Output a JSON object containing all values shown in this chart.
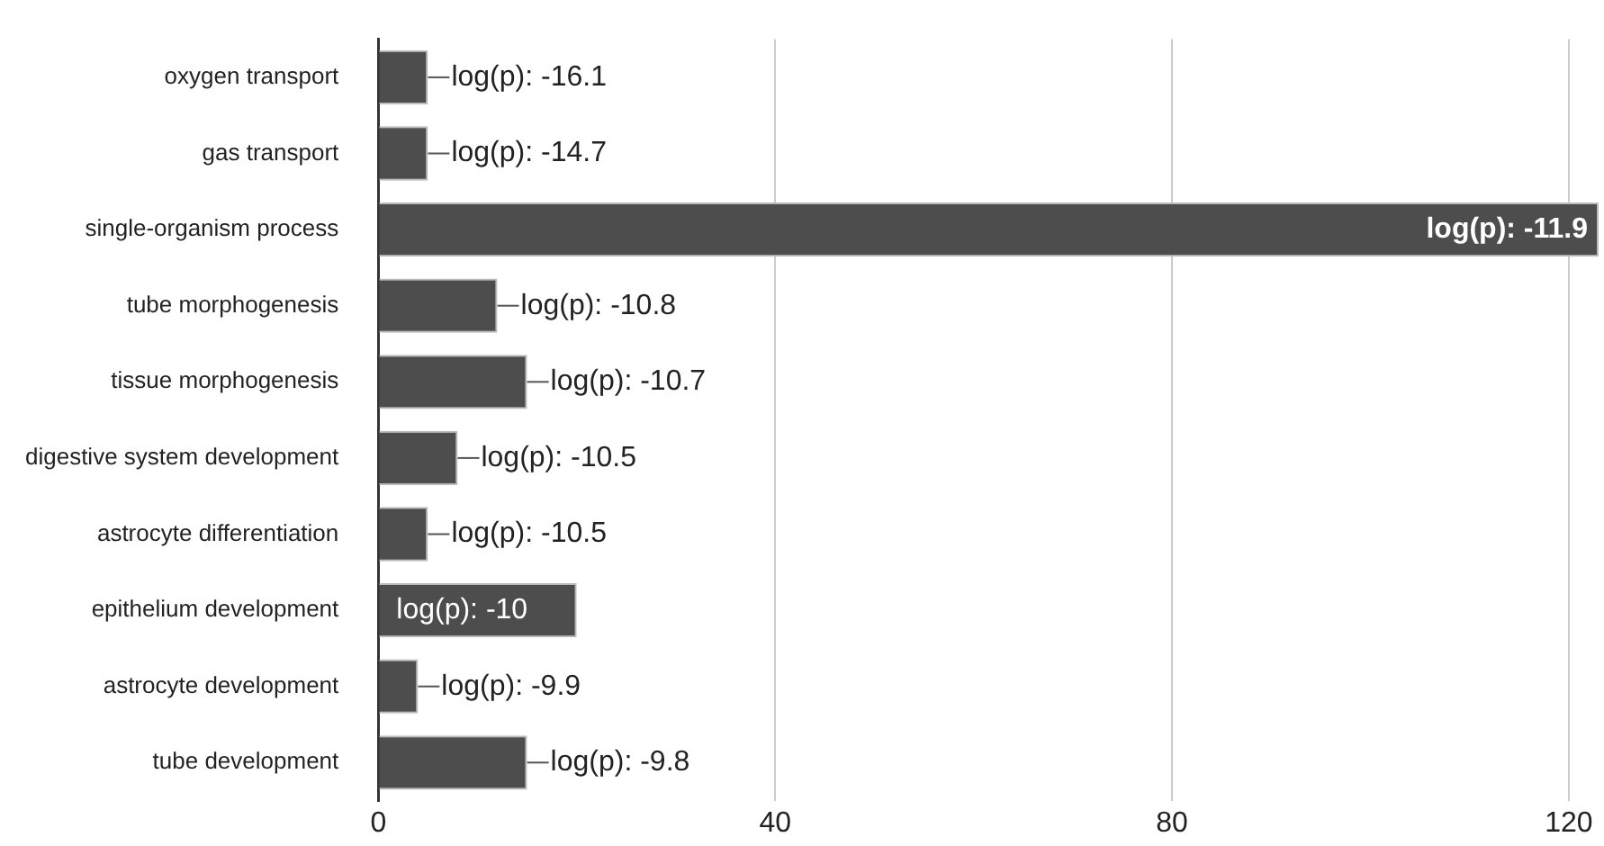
{
  "chart_data": {
    "type": "bar",
    "orientation": "horizontal",
    "categories": [
      "oxygen transport",
      "gas transport",
      "single-organism process",
      "tube morphogenesis",
      "tissue morphogenesis",
      "digestive system development",
      "astrocyte differentiation",
      "epithelium development",
      "astrocyte development",
      "tube development"
    ],
    "values": [
      5,
      5,
      123,
      12,
      15,
      8,
      5,
      20,
      4,
      15
    ],
    "annotations": [
      {
        "text": "log(p): -16.1",
        "x": 5,
        "y": "oxygen transport"
      },
      {
        "text": "log(p): -14.7",
        "x": 5,
        "y": "gas transport"
      },
      {
        "text": "log(p): -11.9",
        "x": 123,
        "y": "single-organism process"
      },
      {
        "text": "log(p): -10.8",
        "x": 12,
        "y": "tube morphogenesis"
      },
      {
        "text": "log(p): -10.7",
        "x": 15,
        "y": "tissue morphogenesis"
      },
      {
        "text": "log(p): -10.5",
        "x": 8,
        "y": "digestive system development"
      },
      {
        "text": "log(p): -10.5",
        "x": 5,
        "y": "astrocyte differentiation"
      },
      {
        "text": "log(p): -10",
        "x": 20,
        "y": "epithelium development"
      },
      {
        "text": "log(p): -9.9",
        "x": 4,
        "y": "astrocyte development"
      },
      {
        "text": "log(p): -9.8",
        "x": 15,
        "y": "tube development"
      }
    ],
    "color": "#4d4d4d",
    "xlim": [
      0,
      123
    ],
    "xticks": [
      0,
      40,
      80,
      120
    ],
    "grid": "x",
    "legend": false
  }
}
